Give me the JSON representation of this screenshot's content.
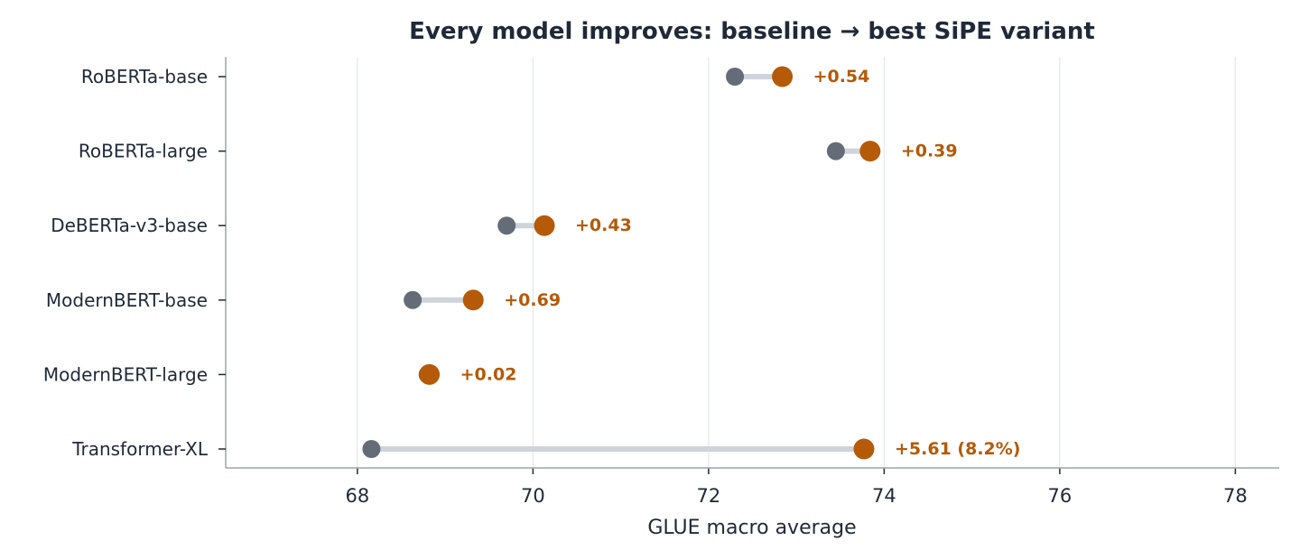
{
  "chart_data": {
    "type": "scatter",
    "subtype": "dumbbell",
    "title": "Every model improves: baseline → best SiPE variant",
    "xlabel": "GLUE macro average",
    "ylabel": "",
    "xlim": [
      66.5,
      78.5
    ],
    "xticks": [
      68,
      70,
      72,
      74,
      76,
      78
    ],
    "grid": "vertical",
    "categories": [
      "RoBERTa-base",
      "RoBERTa-large",
      "DeBERTa-v3-base",
      "ModernBERT-base",
      "ModernBERT-large",
      "Transformer-XL"
    ],
    "series": [
      {
        "values": [
          72.3,
          73.45,
          69.7,
          68.63,
          68.8,
          68.16
        ]
      },
      {
        "values": [
          72.84,
          73.84,
          70.13,
          69.32,
          68.82,
          73.77
        ]
      }
    ],
    "annotations": [
      "+0.54",
      "+0.39",
      "+0.43",
      "+0.69",
      "+0.02",
      "+5.61 (8.2%)"
    ],
    "colors": {
      "baseline": "#646c78",
      "best": "#b45a09",
      "connector": "#cfd3da",
      "grid": "#e5e7eb",
      "axis": "#9ca3af",
      "text": "#1f2937"
    }
  }
}
